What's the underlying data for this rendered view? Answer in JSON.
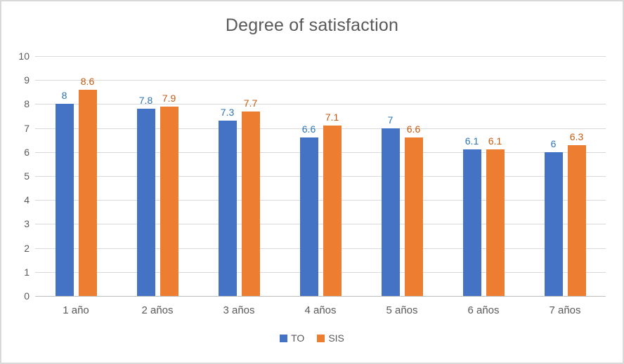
{
  "chart_data": {
    "type": "bar",
    "title": "Degree of satisfaction",
    "categories": [
      "1 año",
      "2 años",
      "3 años",
      "4 años",
      "5 años",
      "6 años",
      "7 años"
    ],
    "series": [
      {
        "name": "TO",
        "color": "#4472C4",
        "label_color": "#2E75B6",
        "values": [
          8,
          7.8,
          7.3,
          6.6,
          7,
          6.1,
          6
        ]
      },
      {
        "name": "SIS",
        "color": "#ED7D31",
        "label_color": "#C55A11",
        "values": [
          8.6,
          7.9,
          7.7,
          7.1,
          6.6,
          6.1,
          6.3
        ]
      }
    ],
    "y_axis": {
      "min": 0,
      "max": 10,
      "step": 1,
      "ticks": [
        0,
        1,
        2,
        3,
        4,
        5,
        6,
        7,
        8,
        9,
        10
      ]
    },
    "grid": true,
    "data_labels": true,
    "legend_position": "bottom",
    "colors": {
      "gridline": "#D9D9D9",
      "axis_line": "#BFBFBF",
      "axis_text": "#595959",
      "title_text": "#595959",
      "frame_border": "#D9D9D9"
    }
  }
}
